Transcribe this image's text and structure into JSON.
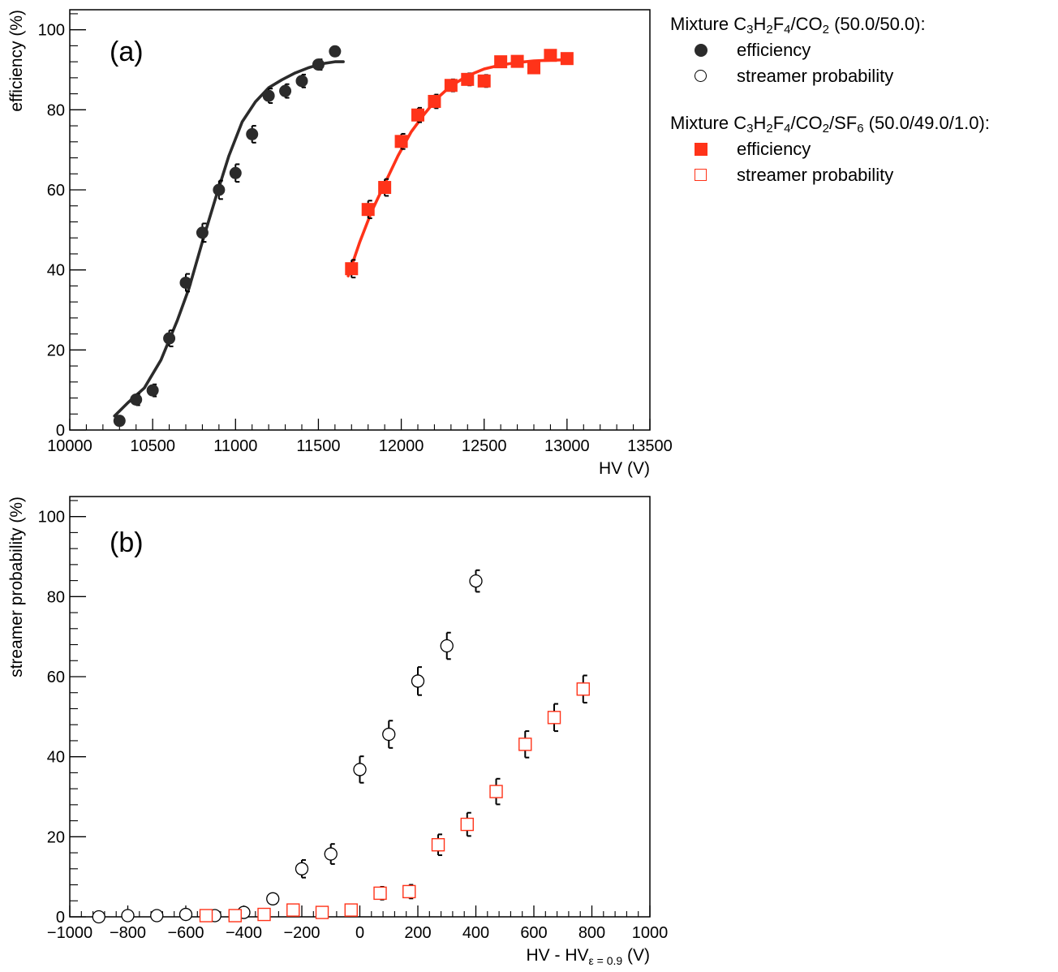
{
  "legend": {
    "mixture1": {
      "prefix": "Mixture ",
      "c": "C",
      "c_sub": "3",
      "h": "H",
      "h_sub": "2",
      "f": "F",
      "f_sub": "4",
      "co": "/CO",
      "co_sub": "2",
      "ratio": " (50.0/50.0):",
      "efficiency_label": "efficiency",
      "streamer_label": "streamer probability"
    },
    "mixture2": {
      "prefix": "Mixture ",
      "c": "C",
      "c_sub": "3",
      "h": "H",
      "h_sub": "2",
      "f": "F",
      "f_sub": "4",
      "co": "/CO",
      "co_sub": "2",
      "sf": "/SF",
      "sf_sub": "6",
      "ratio": " (50.0/49.0/1.0):",
      "efficiency_label": "efficiency",
      "streamer_label": "streamer probability"
    }
  },
  "colors": {
    "mix1": "#2b2b2b",
    "mix2": "#ff3319",
    "axis": "#000000"
  },
  "chart_data": [
    {
      "type": "scatter",
      "panel_label": "(a)",
      "xlabel": "HV (V)",
      "ylabel": "efficiency (%)",
      "xlim": [
        10000,
        13500
      ],
      "ylim": [
        0,
        105
      ],
      "xticks": [
        10000,
        10500,
        11000,
        11500,
        12000,
        12500,
        13000,
        13500
      ],
      "yticks": [
        0,
        20,
        40,
        60,
        80,
        100
      ],
      "series": [
        {
          "name": "Mixture C3H2F4/CO2 (50.0/50.0) efficiency",
          "marker": "filled-circle",
          "x": [
            10300,
            10400,
            10500,
            10600,
            10700,
            10800,
            10900,
            11000,
            11100,
            11200,
            11300,
            11400,
            11500,
            11600
          ],
          "y": [
            2.3,
            7.6,
            9.9,
            22.9,
            36.8,
            49.3,
            60.0,
            64.2,
            73.9,
            83.5,
            84.7,
            87.2,
            91.3,
            94.6
          ],
          "err": [
            1.0,
            1.4,
            1.5,
            2.0,
            2.2,
            2.3,
            2.3,
            2.2,
            2.1,
            1.8,
            1.7,
            1.6,
            1.3,
            1.0
          ],
          "fit": {
            "x": [
              10270,
              10350,
              10450,
              10550,
              10650,
              10720,
              10800,
              10880,
              10960,
              11040,
              11120,
              11200,
              11280,
              11360,
              11440,
              11520,
              11600,
              11650
            ],
            "y": [
              3.5,
              6.8,
              10.5,
              17.5,
              27.5,
              35.5,
              47.0,
              58.0,
              68.5,
              77.0,
              82.0,
              85.5,
              87.5,
              89.2,
              90.5,
              91.5,
              92.0,
              92.0
            ]
          }
        },
        {
          "name": "Mixture C3H2F4/CO2/SF6 (50.0/49.0/1.0) efficiency",
          "marker": "filled-square",
          "x": [
            11700,
            11800,
            11900,
            12000,
            12100,
            12200,
            12300,
            12400,
            12500,
            12600,
            12700,
            12800,
            12900,
            13000
          ],
          "y": [
            40.3,
            55.1,
            60.6,
            72.1,
            78.7,
            82.1,
            86.1,
            87.6,
            87.2,
            92.0,
            92.1,
            90.5,
            93.6,
            92.8
          ],
          "err": [
            2.2,
            2.2,
            2.1,
            1.9,
            1.8,
            1.7,
            1.5,
            1.5,
            1.5,
            1.2,
            1.2,
            1.3,
            1.1,
            1.1
          ],
          "fit": {
            "x": [
              11680,
              11750,
              11820,
              11900,
              11980,
              12060,
              12140,
              12220,
              12300,
              12400,
              12500,
              12600,
              12700,
              12800,
              12900,
              13000
            ],
            "y": [
              38.5,
              47.0,
              54.5,
              61.5,
              68.5,
              74.5,
              79.0,
              83.0,
              86.0,
              88.5,
              90.2,
              91.2,
              91.8,
              92.2,
              92.4,
              92.5
            ]
          }
        }
      ]
    },
    {
      "type": "scatter",
      "panel_label": "(b)",
      "xlabel": "HV - HV",
      "xlabel_sub": "ε = 0.9",
      "xlabel_unit": " (V)",
      "ylabel": "streamer probability (%)",
      "xlim": [
        -1000,
        1000
      ],
      "ylim": [
        0,
        105
      ],
      "xticks": [
        -1000,
        -800,
        -600,
        -400,
        -200,
        0,
        200,
        400,
        600,
        800,
        1000
      ],
      "yticks": [
        0,
        20,
        40,
        60,
        80,
        100
      ],
      "series": [
        {
          "name": "Mixture C3H2F4/CO2 (50.0/50.0) streamer probability",
          "marker": "open-circle",
          "x": [
            -900,
            -800,
            -700,
            -600,
            -500,
            -400,
            -300,
            -200,
            -100,
            0,
            100,
            200,
            300,
            400
          ],
          "y": [
            0.0,
            0.3,
            0.3,
            0.6,
            0.3,
            1.1,
            4.5,
            12.0,
            15.7,
            36.8,
            45.6,
            58.9,
            67.7,
            83.9
          ],
          "err": [
            0.3,
            0.4,
            0.4,
            0.6,
            0.4,
            0.8,
            1.2,
            2.2,
            2.5,
            3.3,
            3.4,
            3.5,
            3.3,
            2.7
          ]
        },
        {
          "name": "Mixture C3H2F4/CO2/SF6 (50.0/49.0/1.0) streamer probability",
          "marker": "open-square",
          "x": [
            -530,
            -430,
            -330,
            -230,
            -130,
            -30,
            70,
            170,
            270,
            370,
            470,
            570,
            670,
            770
          ],
          "y": [
            0.3,
            0.3,
            0.6,
            1.7,
            1.1,
            1.7,
            5.9,
            6.3,
            18.0,
            23.1,
            31.3,
            43.1,
            49.8,
            56.9
          ],
          "err": [
            0.4,
            0.4,
            0.5,
            0.8,
            0.7,
            0.9,
            1.6,
            1.7,
            2.6,
            2.9,
            3.2,
            3.3,
            3.4,
            3.4
          ]
        }
      ]
    }
  ]
}
